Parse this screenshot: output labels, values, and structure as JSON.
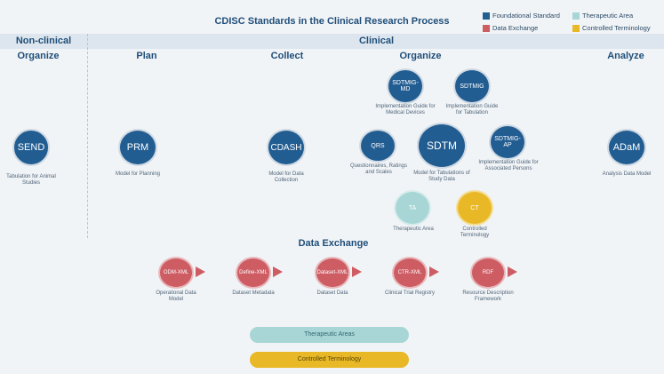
{
  "title": "CDISC Standards in the Clinical Research Process",
  "legend": [
    {
      "label": "Foundational Standard",
      "color": "#225d92"
    },
    {
      "label": "Therapeutic Area",
      "color": "#a8d6d6"
    },
    {
      "label": "Data Exchange",
      "color": "#cd5c63"
    },
    {
      "label": "Controlled Terminology",
      "color": "#e8b826"
    }
  ],
  "bands": {
    "nonclinical": "Non-clinical",
    "clinical": "Clinical"
  },
  "phases": {
    "organize_nc": "Organize",
    "plan": "Plan",
    "collect": "Collect",
    "organize": "Organize",
    "analyze": "Analyze"
  },
  "nodes": {
    "send": {
      "label": "SEND",
      "caption": "Tabulation for Animal Studies"
    },
    "prm": {
      "label": "PRM",
      "caption": "Model for Planning"
    },
    "cdash": {
      "label": "CDASH",
      "caption": "Model for Data Collection"
    },
    "qrs": {
      "label": "QRS",
      "caption": "Questionnaires, Ratings and Scales"
    },
    "sdtm": {
      "label": "SDTM",
      "caption": "Model for Tabulations of Study Data"
    },
    "sdtmig_md": {
      "label": "SDTMIG-MD",
      "caption": "Implementation Guide for Medical Devices"
    },
    "sdtmig": {
      "label": "SDTMIG",
      "caption": "Implementation Guide for Tabulation"
    },
    "sdtmig_ap": {
      "label": "SDTMIG-AP",
      "caption": "Implementation Guide for Associated Persons"
    },
    "adam": {
      "label": "ADaM",
      "caption": "Analysis Data Model"
    },
    "ta": {
      "label": "TA",
      "caption": "Therapeutic Area"
    },
    "ct": {
      "label": "CT",
      "caption": "Controlled Terminology"
    }
  },
  "data_exchange": {
    "heading": "Data Exchange",
    "items": [
      {
        "label": "ODM-XML",
        "caption": "Operational Data Model"
      },
      {
        "label": "Define-XML",
        "caption": "Dataset Metadata"
      },
      {
        "label": "Dataset-XML",
        "caption": "Dataset Data"
      },
      {
        "label": "CTR-XML",
        "caption": "Clinical Trial Registry"
      },
      {
        "label": "RDF",
        "caption": "Resource Description Framework"
      }
    ]
  },
  "bars": {
    "therapeutic": "Therapeutic Areas",
    "controlled": "Controlled Terminology"
  }
}
